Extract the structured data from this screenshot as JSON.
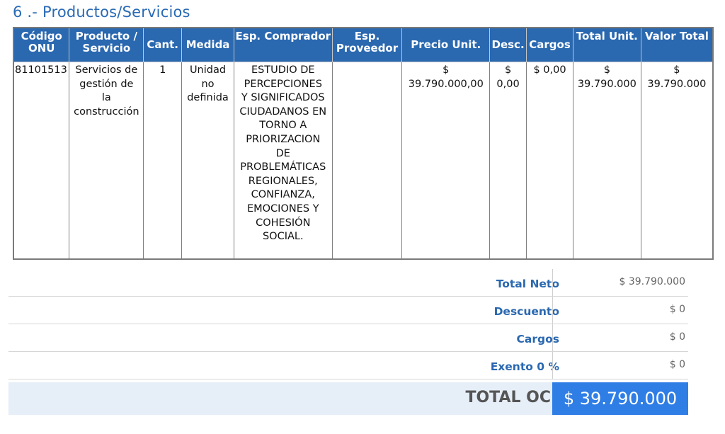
{
  "section": {
    "title": "6 .- Productos/Servicios"
  },
  "table": {
    "headers": [
      [
        "Código",
        "ONU"
      ],
      [
        "Producto /",
        "Servicio"
      ],
      [
        "Cant.",
        ""
      ],
      [
        "Medida",
        ""
      ],
      [
        "Esp.",
        "Comprador"
      ],
      [
        "Esp.",
        "Proveedor"
      ],
      [
        "Precio Unit.",
        ""
      ],
      [
        "Desc.",
        ""
      ],
      [
        "Cargos",
        ""
      ],
      [
        "Total",
        "Unit."
      ],
      [
        "Valor",
        "Total"
      ]
    ],
    "row": {
      "codigo_onu": "81101513",
      "producto": [
        "Servicios de",
        "gestión de",
        "la",
        "construcción"
      ],
      "cant": "1",
      "medida": [
        "Unidad",
        "no",
        "definida"
      ],
      "esp_comprador": [
        "ESTUDIO DE",
        "PERCEPCIONES",
        "Y SIGNIFICADOS",
        "CIUDADANOS EN",
        "TORNO A",
        "PRIORIZACION",
        "DE",
        "PROBLEMÁTICAS",
        "REGIONALES,",
        "CONFIANZA,",
        "EMOCIONES Y",
        "COHESIÓN",
        "SOCIAL."
      ],
      "esp_proveedor": "",
      "precio_unit": [
        "$",
        "39.790.000,00"
      ],
      "desc": [
        "$",
        "0,00"
      ],
      "cargos": "$ 0,00",
      "total_unit": [
        "$",
        "39.790.000"
      ],
      "valor_total": [
        "$",
        "39.790.000"
      ]
    }
  },
  "totals": {
    "total_neto_label": "Total Neto",
    "total_neto_value": "$ 39.790.000",
    "descuento_label": "Descuento",
    "descuento_value": "$ 0",
    "cargos_label": "Cargos",
    "cargos_value": "$ 0",
    "exento_label": "Exento 0 %",
    "exento_value": "$ 0",
    "total_oc_label": "TOTAL OC",
    "total_oc_value": "$ 39.790.000"
  },
  "colors": {
    "accent": "#2a68b0",
    "total_highlight": "#2f7ee6",
    "final_row_bg": "#e6eef8"
  }
}
